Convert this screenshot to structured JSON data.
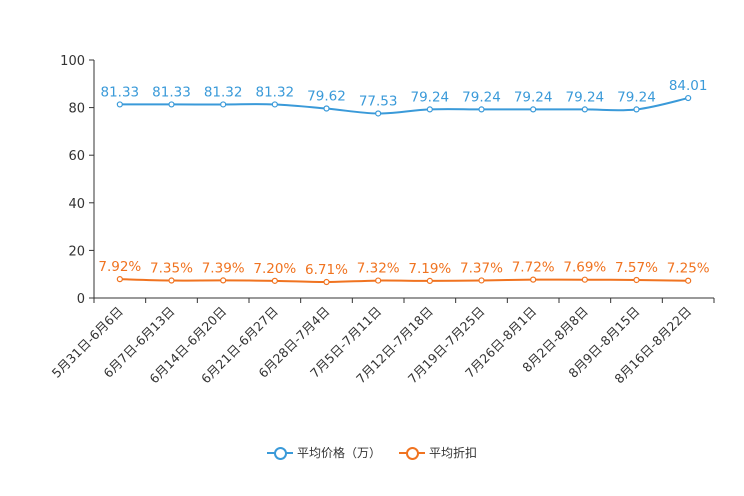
{
  "chart_data": {
    "type": "line",
    "title": "",
    "xlabel": "",
    "ylabel": "",
    "ylim": [
      0,
      100
    ],
    "yticks": [
      "0",
      "20",
      "40",
      "60",
      "80",
      "100"
    ],
    "categories": [
      "5月31日-6月6日",
      "6月7日-6月13日",
      "6月14日-6月20日",
      "6月21日-6月27日",
      "6月28日-7月4日",
      "7月5日-7月11日",
      "7月12日-7月18日",
      "7月19日-7月25日",
      "7月26日-8月1日",
      "8月2日-8月8日",
      "8月9日-8月15日",
      "8月16日-8月22日"
    ],
    "series": [
      {
        "name": "平均价格（万）",
        "color": "#3a9ad9",
        "values": [
          81.33,
          81.33,
          81.32,
          81.32,
          79.62,
          77.53,
          79.24,
          79.24,
          79.24,
          79.24,
          79.24,
          84.01
        ],
        "labels": [
          "81.33",
          "81.33",
          "81.32",
          "81.32",
          "79.62",
          "77.53",
          "79.24",
          "79.24",
          "79.24",
          "79.24",
          "79.24",
          "84.01"
        ]
      },
      {
        "name": "平均折扣",
        "color": "#f07320",
        "values": [
          7.92,
          7.35,
          7.39,
          7.2,
          6.71,
          7.32,
          7.19,
          7.37,
          7.72,
          7.69,
          7.57,
          7.25
        ],
        "labels": [
          "7.92%",
          "7.35%",
          "7.39%",
          "7.20%",
          "6.71%",
          "7.32%",
          "7.19%",
          "7.37%",
          "7.72%",
          "7.69%",
          "7.57%",
          "7.25%"
        ]
      }
    ],
    "legend_position": "bottom"
  }
}
